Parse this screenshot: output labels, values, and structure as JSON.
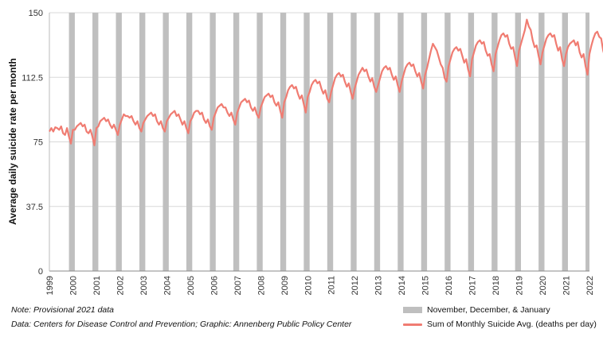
{
  "chart_data": {
    "type": "line",
    "title": "",
    "xlabel": "",
    "ylabel": "Average daily suicide rate per month",
    "ylim": [
      0,
      150
    ],
    "yticks": [
      "0",
      "37.5",
      "75",
      "112.5",
      "150"
    ],
    "xticks": [
      "1999",
      "2000",
      "2001",
      "2002",
      "2003",
      "2004",
      "2005",
      "2006",
      "2007",
      "2008",
      "2009",
      "2010",
      "2011",
      "2012",
      "2013",
      "2014",
      "2015",
      "2016",
      "2017",
      "2018",
      "2019",
      "2020",
      "2021",
      "2022"
    ],
    "x_start": "1999-01",
    "grid": "horizontal",
    "legend_position": "bottom-right",
    "series": [
      {
        "name": "Sum of Monthly Suicide Avg. (deaths per day)",
        "color": "#f07c72",
        "values": [
          81.0,
          83.0,
          81.0,
          83.5,
          83.0,
          82.0,
          84.0,
          80.0,
          79.0,
          83.0,
          78.0,
          74.0,
          82.0,
          82.0,
          84.0,
          85.0,
          86.0,
          84.0,
          85.0,
          81.0,
          80.0,
          82.0,
          78.0,
          73.0,
          83.0,
          84.0,
          87.0,
          88.0,
          89.0,
          87.0,
          88.0,
          85.0,
          83.0,
          85.0,
          82.0,
          79.0,
          85.0,
          88.0,
          91.0,
          90.0,
          90.0,
          89.0,
          90.0,
          87.0,
          85.0,
          87.0,
          83.0,
          81.0,
          86.0,
          88.0,
          90.0,
          91.0,
          92.0,
          90.0,
          91.0,
          87.0,
          85.0,
          87.0,
          83.0,
          81.0,
          87.0,
          89.0,
          91.0,
          92.0,
          93.0,
          90.0,
          91.0,
          88.0,
          85.0,
          87.0,
          83.0,
          80.0,
          87.0,
          89.0,
          92.0,
          93.0,
          93.0,
          91.0,
          92.0,
          88.0,
          86.0,
          88.0,
          84.0,
          82.0,
          89.0,
          92.0,
          95.0,
          96.0,
          97.0,
          95.0,
          95.0,
          92.0,
          90.0,
          92.0,
          88.0,
          85.0,
          92.0,
          95.0,
          98.0,
          99.0,
          100.0,
          98.0,
          99.0,
          95.0,
          93.0,
          95.0,
          91.0,
          89.0,
          95.0,
          98.0,
          101.0,
          102.0,
          103.0,
          101.0,
          102.0,
          98.0,
          96.0,
          98.0,
          93.0,
          89.0,
          98.0,
          101.0,
          105.0,
          107.0,
          108.0,
          106.0,
          107.0,
          103.0,
          100.0,
          102.0,
          97.0,
          92.0,
          101.0,
          104.0,
          108.0,
          110.0,
          111.0,
          109.0,
          110.0,
          106.0,
          103.0,
          105.0,
          100.0,
          98.0,
          104.0,
          108.0,
          112.0,
          114.0,
          115.0,
          113.0,
          114.0,
          110.0,
          107.0,
          109.0,
          104.0,
          100.0,
          106.0,
          110.0,
          114.0,
          116.0,
          118.0,
          116.0,
          117.0,
          113.0,
          110.0,
          112.0,
          107.0,
          104.0,
          108.0,
          112.0,
          116.0,
          118.0,
          119.0,
          117.0,
          118.0,
          114.0,
          111.0,
          113.0,
          108.0,
          104.0,
          110.0,
          114.0,
          118.0,
          120.0,
          121.0,
          119.0,
          120.0,
          116.0,
          113.0,
          115.0,
          110.0,
          106.0,
          114.0,
          118.0,
          123.0,
          128.0,
          132.0,
          130.0,
          128.0,
          124.0,
          120.0,
          118.0,
          112.0,
          110.0,
          119.0,
          123.0,
          127.0,
          129.0,
          130.0,
          128.0,
          129.0,
          125.0,
          121.0,
          123.0,
          117.0,
          113.0,
          123.0,
          127.0,
          131.0,
          133.0,
          134.0,
          132.0,
          133.0,
          128.0,
          125.0,
          126.0,
          120.0,
          116.0,
          126.0,
          130.0,
          134.0,
          137.0,
          138.0,
          136.0,
          137.0,
          132.0,
          129.0,
          130.0,
          124.0,
          119.0,
          128.0,
          132.0,
          136.0,
          140.0,
          146.0,
          142.0,
          140.0,
          134.0,
          130.0,
          131.0,
          125.0,
          120.0,
          127.0,
          131.0,
          135.0,
          137.0,
          138.0,
          136.0,
          137.0,
          132.0,
          128.0,
          130.0,
          123.0,
          119.0,
          126.0,
          130.0,
          132.0,
          133.0,
          134.0,
          131.0,
          133.0,
          127.0,
          124.0,
          126.0,
          119.0,
          114.0,
          126.0,
          131.0,
          135.0,
          138.0,
          139.0,
          136.0,
          135.0,
          128.0,
          124.0
        ]
      }
    ],
    "shaded_periods": {
      "name": "November, December, & January",
      "color": "#bfbfbf",
      "starts": [
        "1999-11",
        "2000-11",
        "2001-11",
        "2002-11",
        "2003-11",
        "2004-11",
        "2005-11",
        "2006-11",
        "2007-11",
        "2008-11",
        "2009-11",
        "2010-11",
        "2011-11",
        "2012-11",
        "2013-11",
        "2014-11",
        "2015-11",
        "2016-11",
        "2017-11",
        "2018-11",
        "2019-11",
        "2020-11",
        "2021-11"
      ],
      "length_months": 3
    }
  },
  "notes": {
    "line1": "Note: Provisional 2021 data",
    "line2": "Data: Centers for Disease Control and Prevention; Graphic: Annenberg Public Policy Center"
  },
  "legend": {
    "bar_label": "November, December, & January",
    "line_label": "Sum of Monthly Suicide Avg. (deaths per day)"
  }
}
